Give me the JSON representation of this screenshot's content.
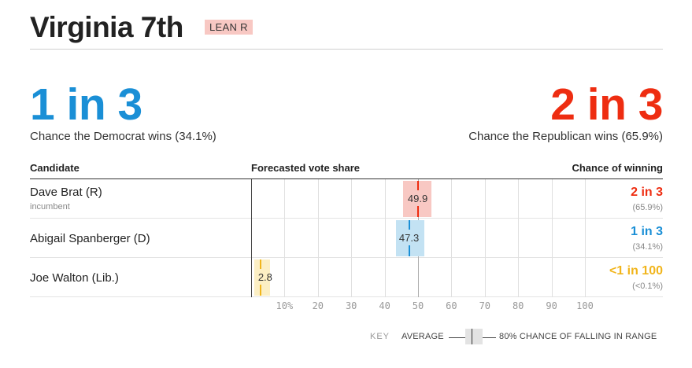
{
  "header": {
    "title": "Virginia 7th",
    "rating": "LEAN R"
  },
  "summary": {
    "dem_odds": "1 in 3",
    "dem_text": "Chance the Democrat wins (34.1%)",
    "rep_odds": "2 in 3",
    "rep_text": "Chance the Republican wins (65.9%)"
  },
  "table": {
    "headers": {
      "candidate": "Candidate",
      "share": "Forecasted vote share",
      "chance": "Chance of winning"
    },
    "rows": [
      {
        "name": "Dave Brat (R)",
        "sub": "incumbent",
        "share_label": "49.9",
        "odds": "2 in 3",
        "pct": "(65.9%)",
        "avg": 49.9,
        "lo": 45.5,
        "hi": 54.0,
        "color": "#ee2d11",
        "fill": "#f8c8c3"
      },
      {
        "name": "Abigail Spanberger (D)",
        "sub": "",
        "share_label": "47.3",
        "odds": "1 in 3",
        "pct": "(34.1%)",
        "avg": 47.3,
        "lo": 43.5,
        "hi": 52.0,
        "color": "#1a8fd6",
        "fill": "#c3e2f3"
      },
      {
        "name": "Joe Walton (Lib.)",
        "sub": "",
        "share_label": "2.8",
        "odds": "<1 in 100",
        "pct": "(<0.1%)",
        "avg": 2.8,
        "lo": 1.0,
        "hi": 5.6,
        "color": "#f1b51c",
        "fill": "#fcefc4"
      }
    ]
  },
  "axis": {
    "ticks": [
      "10%",
      "20",
      "30",
      "40",
      "50",
      "60",
      "70",
      "80",
      "90",
      "100"
    ],
    "tick_values": [
      10,
      20,
      30,
      40,
      50,
      60,
      70,
      80,
      90,
      100
    ],
    "max": 100
  },
  "key": {
    "label": "KEY",
    "average": "AVERAGE",
    "range": "80% CHANCE OF FALLING IN RANGE"
  }
}
